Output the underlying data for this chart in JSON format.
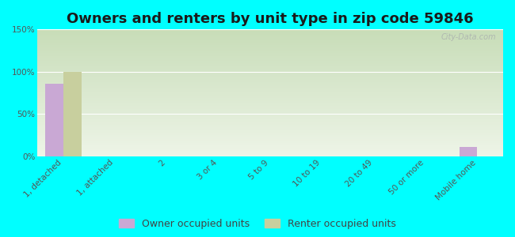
{
  "title": "Owners and renters by unit type in zip code 59846",
  "categories": [
    "1, detached",
    "1, attached",
    "2",
    "3 or 4",
    "5 to 9",
    "10 to 19",
    "20 to 49",
    "50 or more",
    "Mobile home"
  ],
  "owner_values": [
    86,
    0,
    0,
    0,
    0,
    0,
    0,
    0,
    11
  ],
  "renter_values": [
    100,
    0,
    0,
    0,
    0,
    0,
    0,
    0,
    0
  ],
  "owner_color": "#c9a8d4",
  "renter_color": "#c8cf9e",
  "background_color": "#00ffff",
  "grad_top": "#c8ddb8",
  "grad_bottom": "#eef5e8",
  "ylim": [
    0,
    150
  ],
  "yticks": [
    0,
    50,
    100,
    150
  ],
  "ytick_labels": [
    "0%",
    "50%",
    "100%",
    "150%"
  ],
  "bar_width": 0.35,
  "legend_owner": "Owner occupied units",
  "legend_renter": "Renter occupied units",
  "watermark": "City-Data.com",
  "title_fontsize": 13,
  "tick_fontsize": 7.5,
  "legend_fontsize": 9,
  "grid_color": "#e0ead0",
  "tick_label_color": "#555555"
}
